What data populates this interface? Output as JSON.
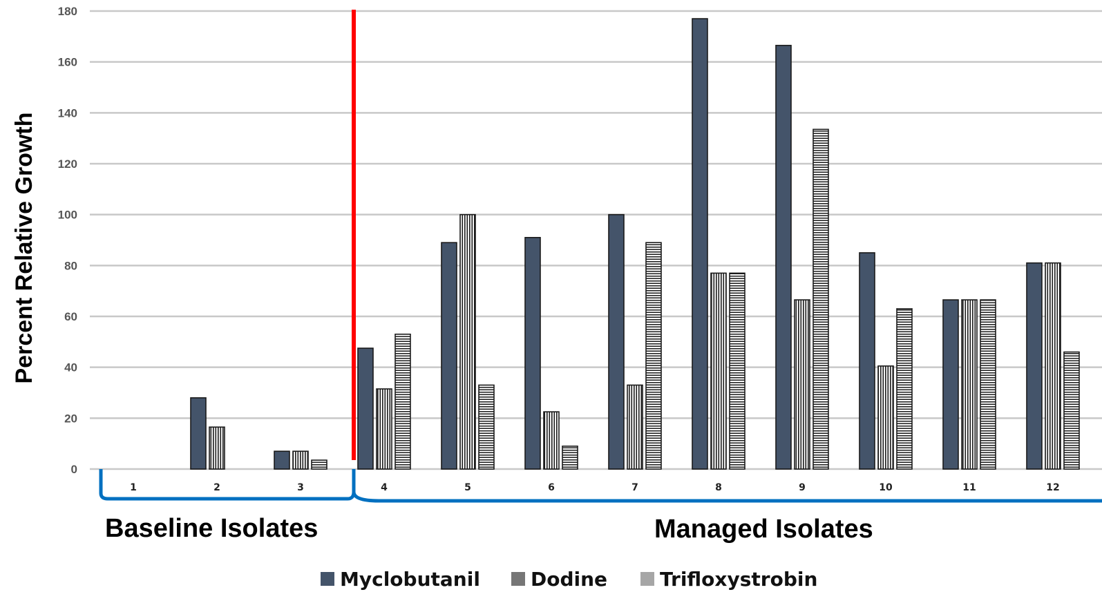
{
  "chart_data": {
    "type": "bar",
    "categories": [
      "1",
      "2",
      "3",
      "4",
      "5",
      "6",
      "7",
      "8",
      "9",
      "10",
      "11",
      "12"
    ],
    "series": [
      {
        "name": "Myclobutanil",
        "values": [
          0,
          28,
          7,
          47.5,
          89,
          91,
          100,
          177,
          166.5,
          85,
          66.5,
          81
        ],
        "color": "#44546a"
      },
      {
        "name": "Dodine",
        "values": [
          0,
          16.5,
          7,
          31.5,
          100,
          22.5,
          33,
          77,
          66.5,
          40.5,
          66.5,
          81
        ],
        "color": "#767676"
      },
      {
        "name": "Trifloxystrobin",
        "values": [
          0,
          0,
          3.5,
          53,
          33,
          9,
          89,
          77,
          133.5,
          63,
          66.5,
          46
        ],
        "color": "#a6a6a6"
      }
    ],
    "xlabel": "",
    "ylabel": "Percent Relative Growth",
    "ylim": [
      0,
      180
    ],
    "yticks": [
      "0",
      "20",
      "40",
      "60",
      "80",
      "100",
      "120",
      "140",
      "160",
      "180"
    ],
    "grid": true,
    "legend_position": "bottom",
    "divider_color": "#ff0000",
    "bracket_color": "#0070c0",
    "groups": [
      {
        "label": "Baseline Isolates",
        "isolates": [
          "1",
          "2",
          "3"
        ]
      },
      {
        "label": "Managed Isolates",
        "isolates": [
          "4",
          "5",
          "6",
          "7",
          "8",
          "9",
          "10",
          "11",
          "12"
        ]
      }
    ]
  }
}
